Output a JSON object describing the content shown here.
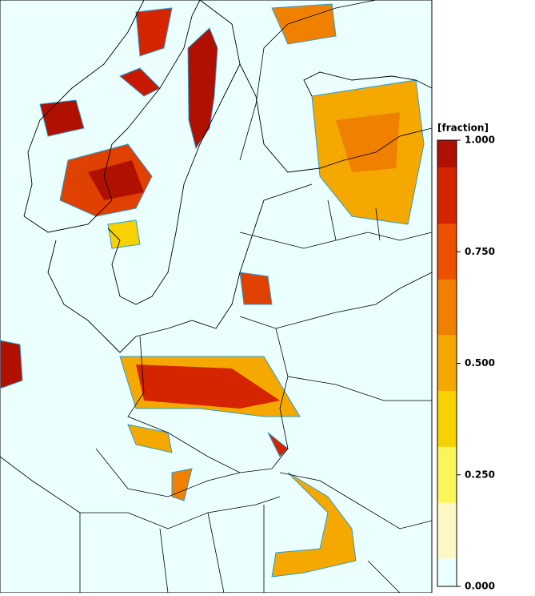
{
  "colorbar": {
    "label": "[fraction]",
    "lim": [
      0,
      1
    ],
    "bins": [
      0,
      0.0625,
      0.1875,
      0.3125,
      0.4375,
      0.5625,
      0.6875,
      0.8125,
      0.9375,
      1
    ],
    "colors": [
      "#ebffff",
      "#fdf8c4",
      "#f9f55a",
      "#f8d200",
      "#f4a800",
      "#f08000",
      "#ec5000",
      "#d42400",
      "#b01000"
    ],
    "ticks": [
      {
        "value": 1,
        "label": "1.000"
      },
      {
        "value": 0.75,
        "label": "0.750"
      },
      {
        "value": 0.5,
        "label": "0.500"
      },
      {
        "value": 0.25,
        "label": "0.250"
      },
      {
        "value": 0,
        "label": "0.000"
      }
    ]
  }
}
